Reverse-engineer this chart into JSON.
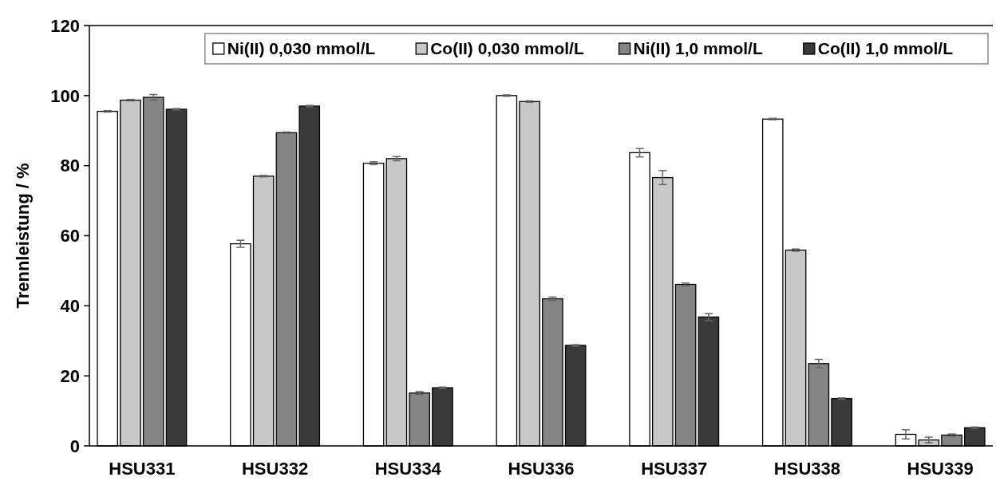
{
  "chart_data": {
    "type": "bar",
    "ylabel": "Trennleistung / %",
    "categories": [
      "HSU331",
      "HSU332",
      "HSU334",
      "HSU336",
      "HSU337",
      "HSU338",
      "HSU339"
    ],
    "series": [
      {
        "name": "Ni(II) 0,030 mmol/L",
        "color": "#ffffff",
        "values": [
          95.5,
          57.7,
          80.7,
          100,
          83.7,
          93.3,
          3.3
        ],
        "errors": [
          0.2,
          1,
          0.4,
          0.2,
          1.2,
          0.2,
          1.3
        ]
      },
      {
        "name": "Co(II) 0,030 mmol/L",
        "color": "#c8c8c8",
        "values": [
          98.7,
          77,
          82,
          98.3,
          76.6,
          55.9,
          1.7
        ],
        "errors": [
          0.2,
          0.2,
          0.6,
          0.2,
          2,
          0.3,
          0.8
        ]
      },
      {
        "name": "Ni(II) 1,0 mmol/L",
        "color": "#858585",
        "values": [
          99.5,
          89.4,
          15.1,
          42,
          46.1,
          23.5,
          3.1
        ],
        "errors": [
          0.8,
          0.2,
          0.4,
          0.5,
          0.4,
          1.2,
          0.3
        ]
      },
      {
        "name": "Co(II) 1,0 mmol/L",
        "color": "#3a3a3a",
        "values": [
          96.1,
          97,
          16.6,
          28.7,
          36.8,
          13.5,
          5.2
        ],
        "errors": [
          0.2,
          0.2,
          0.2,
          0.2,
          1,
          0.2,
          0.2
        ]
      }
    ],
    "ylim": [
      0,
      120
    ],
    "yticks": [
      0,
      20,
      40,
      60,
      80,
      100,
      120
    ],
    "grid": false,
    "legend": "top"
  }
}
